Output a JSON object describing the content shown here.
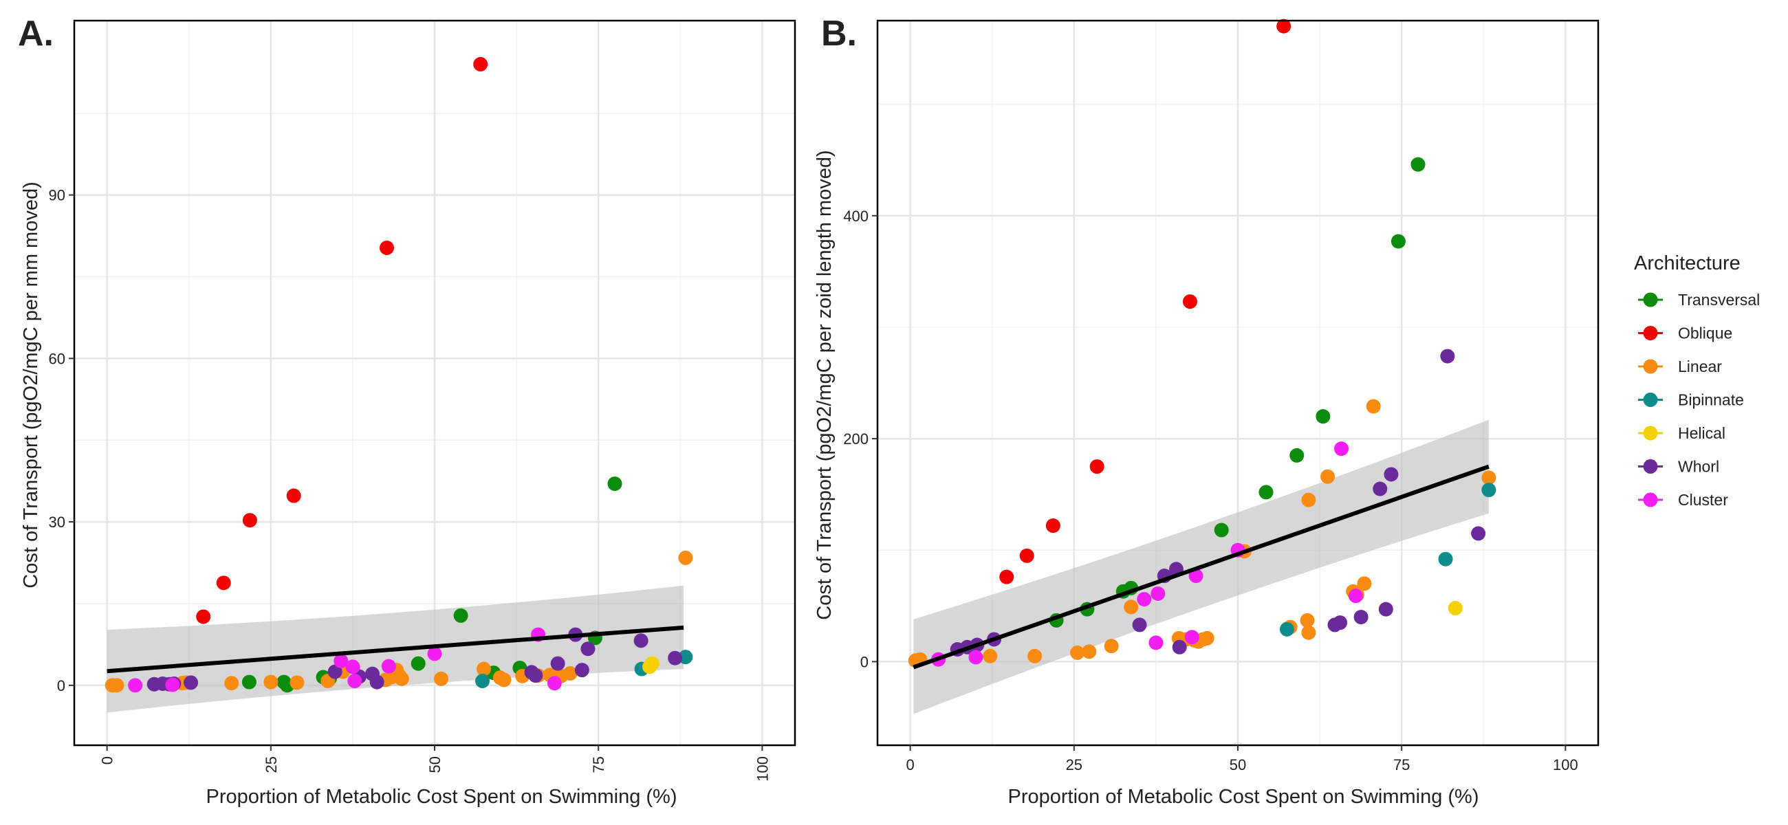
{
  "colors": {
    "Transversal": "#0b8c0b",
    "Oblique": "#f20000",
    "Linear": "#f98b12",
    "Bipinnate": "#0e8c8c",
    "Helical": "#f5d100",
    "Whorl": "#6a2a9c",
    "Cluster": "#f21ef2",
    "fit_line": "#000000",
    "ci_band": "#bdbdbd"
  },
  "legend": {
    "title": "Architecture",
    "items": [
      "Transversal",
      "Oblique",
      "Linear",
      "Bipinnate",
      "Helical",
      "Whorl",
      "Cluster"
    ]
  },
  "chart_data": [
    {
      "type": "scatter",
      "panel_label": "A.",
      "xlabel": "Proportion of Metabolic Cost Spent on Swimming (%)",
      "ylabel": "Cost of Transport (pgO2/mgC per mm moved)",
      "xlim": [
        -5,
        105
      ],
      "ylim": [
        -11,
        122
      ],
      "xticks": [
        0,
        25,
        50,
        75,
        100
      ],
      "yticks": [
        0,
        30,
        60,
        90
      ],
      "x_tick_labels_rotated": true,
      "grid": true,
      "fit": {
        "x": [
          0,
          88
        ],
        "y": [
          2.6,
          10.6
        ],
        "ci_lower": [
          -5,
          3.0
        ],
        "ci_upper": [
          10.2,
          18.3
        ]
      },
      "series": [
        {
          "name": "Transversal",
          "points": [
            [
              21.7,
              0.6
            ],
            [
              27,
              0.6
            ],
            [
              27.5,
              0
            ],
            [
              33,
              1.5
            ],
            [
              34,
              1.3
            ],
            [
              47.5,
              4
            ],
            [
              54,
              12.8
            ],
            [
              59,
              2.3
            ],
            [
              63,
              3.2
            ],
            [
              74.5,
              8.7
            ],
            [
              77.5,
              37
            ]
          ]
        },
        {
          "name": "Oblique",
          "points": [
            [
              14.7,
              12.6
            ],
            [
              17.8,
              18.8
            ],
            [
              21.8,
              30.3
            ],
            [
              28.5,
              34.8
            ],
            [
              42.7,
              80.3
            ],
            [
              57,
              114
            ]
          ]
        },
        {
          "name": "Linear",
          "points": [
            [
              0.8,
              0
            ],
            [
              1.5,
              0
            ],
            [
              11.5,
              0.4
            ],
            [
              12.1,
              0.5
            ],
            [
              19,
              0.4
            ],
            [
              25,
              0.6
            ],
            [
              29,
              0.5
            ],
            [
              33.7,
              0.8
            ],
            [
              36,
              2.5
            ],
            [
              42.5,
              1
            ],
            [
              43.4,
              1.5
            ],
            [
              44.2,
              2.8
            ],
            [
              44.6,
              1.8
            ],
            [
              45,
              1.2
            ],
            [
              51,
              1.2
            ],
            [
              57.5,
              3
            ],
            [
              60,
              1.4
            ],
            [
              60.6,
              1
            ],
            [
              63.4,
              1.7
            ],
            [
              65.8,
              1.8
            ],
            [
              67.6,
              1.9
            ],
            [
              68.2,
              1.7
            ],
            [
              69.3,
              1.7
            ],
            [
              70.7,
              2.2
            ],
            [
              88.3,
              23.4
            ]
          ]
        },
        {
          "name": "Bipinnate",
          "points": [
            [
              57.3,
              0.8
            ],
            [
              81.6,
              3
            ],
            [
              88.3,
              5.2
            ]
          ]
        },
        {
          "name": "Helical",
          "points": [
            [
              82.8,
              3.4
            ],
            [
              83.2,
              4
            ]
          ]
        },
        {
          "name": "Whorl",
          "points": [
            [
              7.2,
              0.2
            ],
            [
              8.5,
              0.3
            ],
            [
              9.5,
              0.2
            ],
            [
              10.2,
              0.3
            ],
            [
              12.8,
              0.5
            ],
            [
              34.8,
              2.5
            ],
            [
              38.5,
              1.6
            ],
            [
              40.5,
              2.1
            ],
            [
              41.2,
              0.6
            ],
            [
              64.8,
              2.4
            ],
            [
              65.4,
              1.8
            ],
            [
              68.8,
              4
            ],
            [
              71.5,
              9.3
            ],
            [
              72.5,
              2.8
            ],
            [
              73.4,
              6.7
            ],
            [
              81.5,
              8.2
            ],
            [
              86.7,
              5
            ]
          ]
        },
        {
          "name": "Cluster",
          "points": [
            [
              4.3,
              0
            ],
            [
              10,
              0.1
            ],
            [
              35.7,
              4.5
            ],
            [
              37.5,
              3.4
            ],
            [
              37.8,
              0.8
            ],
            [
              43,
              3.5
            ],
            [
              50,
              5.8
            ],
            [
              65.8,
              9.3
            ],
            [
              68.3,
              0.4
            ]
          ]
        }
      ]
    },
    {
      "type": "scatter",
      "panel_label": "B.",
      "xlabel": "Proportion of Metabolic Cost Spent on Swimming (%)",
      "ylabel": "Cost of Transport (pgO2/mgC per zoid length moved)",
      "xlim": [
        -5,
        105
      ],
      "ylim": [
        -75,
        575
      ],
      "xticks": [
        0,
        25,
        50,
        75,
        100
      ],
      "yticks": [
        0,
        200,
        400
      ],
      "grid": true,
      "fit": {
        "x": [
          0.5,
          88.3
        ],
        "y": [
          -5,
          175
        ],
        "ci_lower": [
          -47,
          133
        ],
        "ci_upper": [
          38,
          217
        ]
      },
      "series": [
        {
          "name": "Transversal",
          "points": [
            [
              22.3,
              37
            ],
            [
              27,
              47
            ],
            [
              32.5,
              63
            ],
            [
              33.7,
              66
            ],
            [
              47.5,
              118
            ],
            [
              54.3,
              152
            ],
            [
              59,
              185
            ],
            [
              63,
              220
            ],
            [
              74.5,
              377
            ],
            [
              77.5,
              446
            ]
          ]
        },
        {
          "name": "Oblique",
          "points": [
            [
              14.7,
              76
            ],
            [
              17.8,
              95
            ],
            [
              21.8,
              122
            ],
            [
              28.5,
              175
            ],
            [
              42.7,
              323
            ],
            [
              57,
              570
            ]
          ]
        },
        {
          "name": "Linear",
          "points": [
            [
              0.8,
              1
            ],
            [
              1.5,
              2
            ],
            [
              12.2,
              5
            ],
            [
              19,
              5
            ],
            [
              25.5,
              8
            ],
            [
              27.3,
              9
            ],
            [
              30.7,
              14
            ],
            [
              33.7,
              49
            ],
            [
              41,
              21
            ],
            [
              42.1,
              20
            ],
            [
              43.4,
              19
            ],
            [
              44,
              18
            ],
            [
              44.7,
              20
            ],
            [
              45.3,
              21
            ],
            [
              51,
              99
            ],
            [
              57.7,
              30
            ],
            [
              58,
              31
            ],
            [
              60.6,
              37
            ],
            [
              60.8,
              26
            ],
            [
              60.8,
              145
            ],
            [
              63.7,
              166
            ],
            [
              67.6,
              63
            ],
            [
              68.2,
              60
            ],
            [
              69.3,
              70
            ],
            [
              70.7,
              229
            ],
            [
              88.3,
              165
            ]
          ]
        },
        {
          "name": "Bipinnate",
          "points": [
            [
              57.5,
              29
            ],
            [
              81.7,
              92
            ],
            [
              88.3,
              154
            ]
          ]
        },
        {
          "name": "Helical",
          "points": [
            [
              83.2,
              48
            ]
          ]
        },
        {
          "name": "Whorl",
          "points": [
            [
              7.2,
              11
            ],
            [
              8.7,
              13
            ],
            [
              10.2,
              15
            ],
            [
              12.8,
              20
            ],
            [
              35,
              33
            ],
            [
              41.1,
              13
            ],
            [
              38.8,
              77
            ],
            [
              40.6,
              83
            ],
            [
              64.8,
              33
            ],
            [
              65.6,
              35
            ],
            [
              68.8,
              40
            ],
            [
              71.7,
              155
            ],
            [
              72.6,
              47
            ],
            [
              73.4,
              168
            ],
            [
              82,
              274
            ],
            [
              86.7,
              115
            ]
          ]
        },
        {
          "name": "Cluster",
          "points": [
            [
              4.3,
              2
            ],
            [
              10,
              4
            ],
            [
              35.7,
              56
            ],
            [
              37.5,
              17
            ],
            [
              37.8,
              61
            ],
            [
              43,
              22
            ],
            [
              43.6,
              77
            ],
            [
              50,
              100
            ],
            [
              65.8,
              191
            ],
            [
              68,
              59
            ]
          ]
        }
      ]
    }
  ]
}
